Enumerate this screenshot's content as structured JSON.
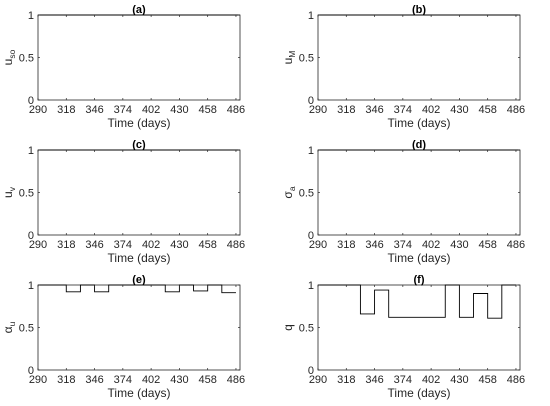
{
  "chart_data": [
    {
      "type": "line",
      "title": "(a)",
      "xlabel": "Time (days)",
      "ylabel": {
        "base": "u",
        "sub": "so",
        "style": "subscript"
      },
      "xlim": [
        290,
        490
      ],
      "ylim": [
        0,
        1
      ],
      "xticks": [
        "290",
        "318",
        "346",
        "374",
        "402",
        "430",
        "458",
        "486"
      ],
      "yticks": [
        "0",
        "0.5",
        "1"
      ],
      "grid": false,
      "series": [
        {
          "x": [
            290,
            490
          ],
          "y": [
            1,
            1
          ],
          "step": true
        }
      ]
    },
    {
      "type": "line",
      "title": "(b)",
      "xlabel": "Time (days)",
      "ylabel": {
        "base": "u",
        "sub": "M",
        "style": "subscript"
      },
      "xlim": [
        290,
        490
      ],
      "ylim": [
        0,
        1
      ],
      "xticks": [
        "290",
        "318",
        "346",
        "374",
        "402",
        "430",
        "458",
        "486"
      ],
      "yticks": [
        "0",
        "0.5",
        "1"
      ],
      "grid": false,
      "series": [
        {
          "x": [
            290,
            490
          ],
          "y": [
            1,
            1
          ],
          "step": true
        }
      ]
    },
    {
      "type": "line",
      "title": "(c)",
      "xlabel": "Time (days)",
      "ylabel": {
        "base": "u",
        "sub": "v",
        "style": "subscript"
      },
      "xlim": [
        290,
        490
      ],
      "ylim": [
        0,
        1
      ],
      "xticks": [
        "290",
        "318",
        "346",
        "374",
        "402",
        "430",
        "458",
        "486"
      ],
      "yticks": [
        "0",
        "0.5",
        "1"
      ],
      "grid": false,
      "series": [
        {
          "x": [
            290,
            490
          ],
          "y": [
            1,
            1
          ],
          "step": true
        }
      ]
    },
    {
      "type": "line",
      "title": "(d)",
      "xlabel": "Time (days)",
      "ylabel": {
        "base": "σ",
        "sub": "a",
        "style": "greek-subscript"
      },
      "xlim": [
        290,
        490
      ],
      "ylim": [
        0,
        1
      ],
      "xticks": [
        "290",
        "318",
        "346",
        "374",
        "402",
        "430",
        "458",
        "486"
      ],
      "yticks": [
        "0",
        "0.5",
        "1"
      ],
      "grid": false,
      "series": [
        {
          "x": [
            290,
            490
          ],
          "y": [
            1,
            1
          ],
          "step": true
        }
      ]
    },
    {
      "type": "line",
      "title": "(e)",
      "xlabel": "Time (days)",
      "ylabel": {
        "base": "α",
        "sub": "u",
        "style": "greek-subscript"
      },
      "xlim": [
        290,
        490
      ],
      "ylim": [
        0,
        1
      ],
      "xticks": [
        "290",
        "318",
        "346",
        "374",
        "402",
        "430",
        "458",
        "486"
      ],
      "yticks": [
        "0",
        "0.5",
        "1"
      ],
      "grid": false,
      "series": [
        {
          "x": [
            290,
            318,
            318,
            332,
            332,
            346,
            346,
            360,
            360,
            416,
            416,
            430,
            430,
            444,
            444,
            458,
            458,
            472,
            472,
            486
          ],
          "y": [
            1,
            1,
            0.92,
            0.92,
            1,
            1,
            0.92,
            0.92,
            1,
            1,
            0.92,
            0.92,
            1,
            1,
            0.93,
            0.93,
            1,
            1,
            0.91,
            0.91
          ],
          "step": true
        }
      ]
    },
    {
      "type": "line",
      "title": "(f)",
      "xlabel": "Time (days)",
      "ylabel": {
        "base": "q",
        "sub": "",
        "style": "plain"
      },
      "xlim": [
        290,
        490
      ],
      "ylim": [
        0,
        1
      ],
      "xticks": [
        "290",
        "318",
        "346",
        "374",
        "402",
        "430",
        "458",
        "486"
      ],
      "yticks": [
        "0",
        "0.5",
        "1"
      ],
      "grid": false,
      "series": [
        {
          "x": [
            290,
            332,
            332,
            346,
            346,
            360,
            360,
            416,
            416,
            430,
            430,
            444,
            444,
            458,
            458,
            472,
            472,
            486
          ],
          "y": [
            1,
            1,
            0.66,
            0.66,
            0.94,
            0.94,
            0.62,
            0.62,
            1,
            1,
            0.62,
            0.62,
            0.9,
            0.9,
            0.61,
            0.61,
            1,
            1
          ],
          "step": true
        }
      ]
    }
  ]
}
